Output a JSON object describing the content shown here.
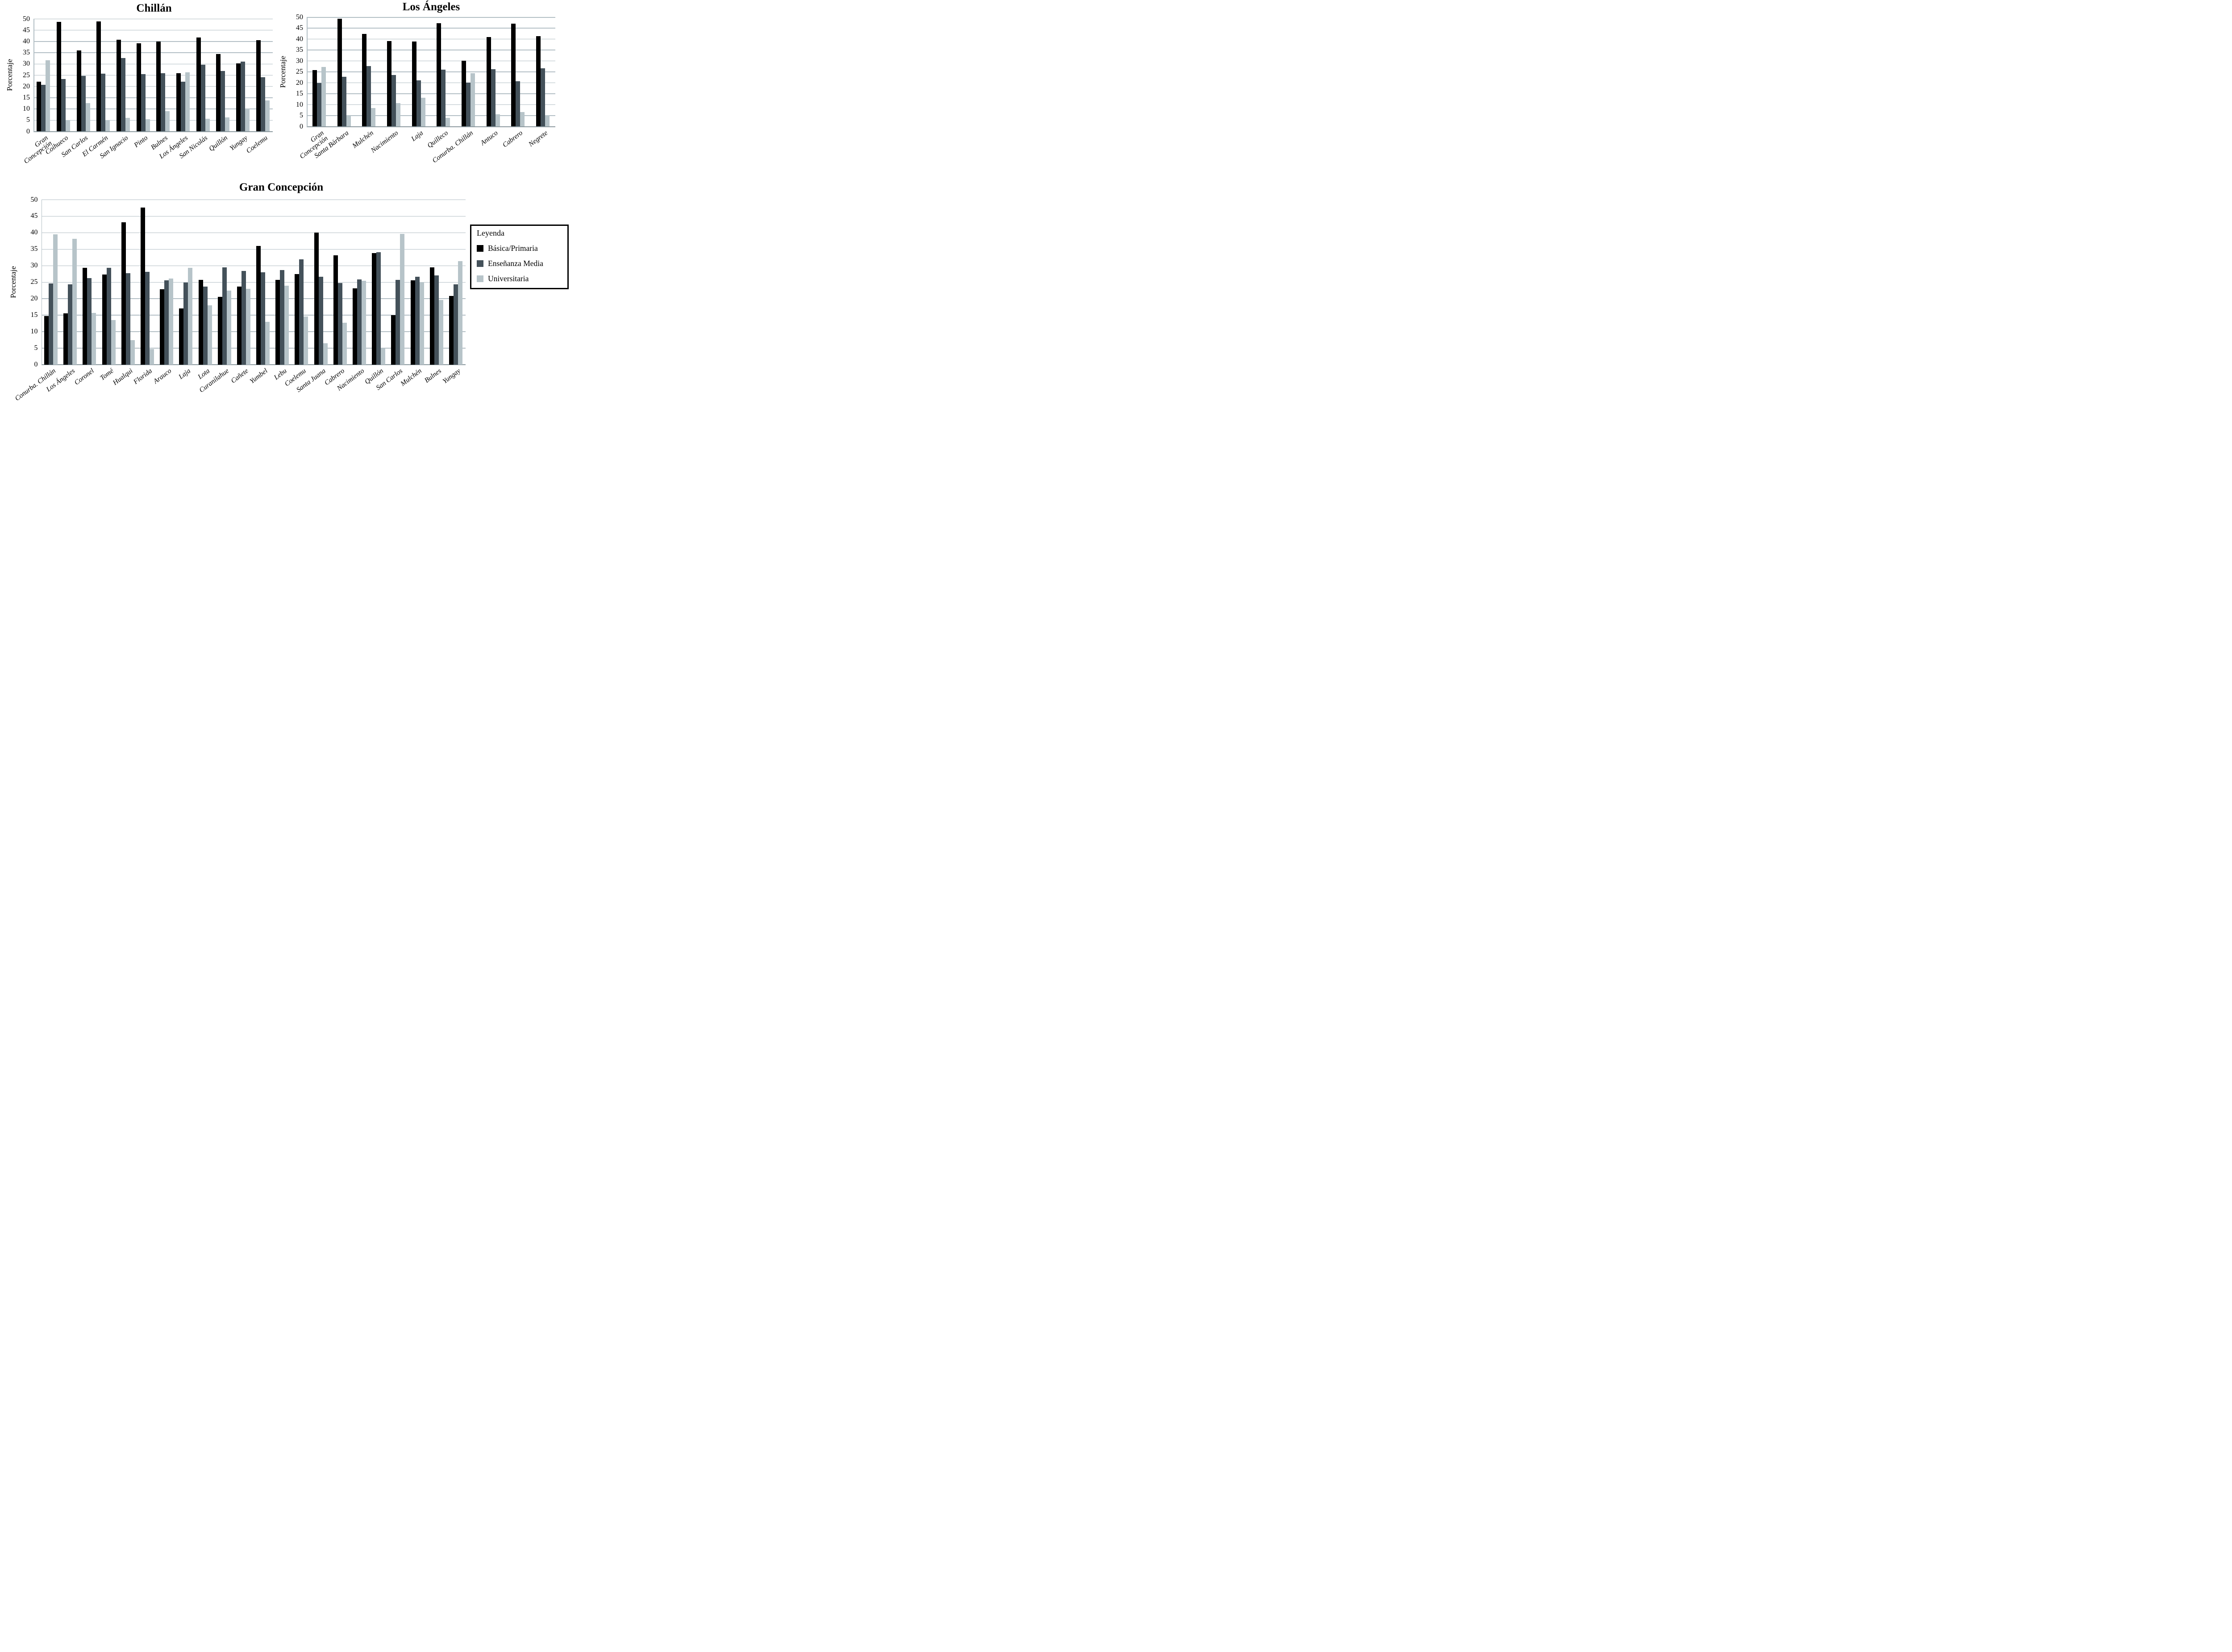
{
  "page": {
    "background": "#ffffff",
    "text_color": "#000000",
    "gridline_color": "#b3bfc5",
    "axis_line_color": "#8d9aa0"
  },
  "y_axis": {
    "label": "Porcentaje",
    "min": 0,
    "max": 50,
    "ticks": [
      0,
      5,
      10,
      15,
      20,
      25,
      30,
      35,
      40,
      45,
      50
    ]
  },
  "legend": {
    "title": "Leyenda",
    "items": [
      {
        "label": "Básica/Primaria",
        "color": "#000000"
      },
      {
        "label": "Enseñanza Media",
        "color": "#44515a"
      },
      {
        "label": "Universitaria",
        "color": "#b7c4c9"
      }
    ]
  },
  "chart_data": [
    {
      "type": "bar",
      "title": "Chillán",
      "xlabel": "",
      "ylabel": "Porcentaje",
      "ylim": [
        0,
        50
      ],
      "grid": true,
      "legend_position": "none",
      "categories": [
        "Gran\nConcepción",
        "Coihueco",
        "San Carlos",
        "El Carmén",
        "San Ignacio",
        "Pinto",
        "Bulnes",
        "Los Ángeles",
        "San Nicolás",
        "Quillón",
        "Yungay",
        "Coelemu"
      ],
      "series": [
        {
          "name": "Básica/Primaria",
          "values": [
            22.2,
            48.8,
            36.0,
            48.9,
            40.7,
            39.1,
            40.0,
            25.8,
            41.7,
            34.5,
            30.2,
            40.6
          ]
        },
        {
          "name": "Enseñanza Media",
          "values": [
            20.7,
            23.3,
            24.8,
            25.7,
            32.7,
            25.4,
            25.8,
            22.1,
            29.6,
            26.8,
            31.0,
            24.1
          ]
        },
        {
          "name": "Universitaria",
          "values": [
            31.6,
            5.0,
            12.6,
            5.1,
            6.1,
            5.4,
            9.0,
            26.3,
            5.7,
            6.2,
            10.2,
            13.8
          ]
        }
      ]
    },
    {
      "type": "bar",
      "title": "Los Ángeles",
      "xlabel": "",
      "ylabel": "Porcentaje",
      "ylim": [
        0,
        50
      ],
      "grid": true,
      "legend_position": "none",
      "categories": [
        "Gran\nConcepción",
        "Santa Bárbara",
        "Mulchén",
        "Nacimiento",
        "Laja",
        "Quilleco",
        "Conurba. Chillán",
        "Antuco",
        "Cabrero",
        "Negrete"
      ],
      "series": [
        {
          "name": "Básica/Primaria",
          "values": [
            25.9,
            49.3,
            42.3,
            39.2,
            38.9,
            47.3,
            30.2,
            41.0,
            47.0,
            41.4
          ]
        },
        {
          "name": "Enseñanza Media",
          "values": [
            20.0,
            22.8,
            27.6,
            23.6,
            21.1,
            26.1,
            20.1,
            26.2,
            20.8,
            26.7
          ]
        },
        {
          "name": "Universitaria",
          "values": [
            27.3,
            5.0,
            8.4,
            10.7,
            13.1,
            4.0,
            24.4,
            5.6,
            6.7,
            5.2
          ]
        }
      ]
    },
    {
      "type": "bar",
      "title": "Gran Concepción",
      "xlabel": "",
      "ylabel": "Porcentaje",
      "ylim": [
        0,
        50
      ],
      "grid": true,
      "legend_position": "right",
      "categories": [
        "Conurba. Chillán",
        "Los Ángeles",
        "Coronel",
        "Tomé",
        "Hualqui",
        "Florida",
        "Arauco",
        "Laja",
        "Lota",
        "Curanilahue",
        "Cañete",
        "Yumbel",
        "Lebu",
        "Coelemu",
        "Santa Juana",
        "Cabrero",
        "Nacimiento",
        "Quillón",
        "San Carlos",
        "Mulchén",
        "Bulnes",
        "Yungay"
      ],
      "series": [
        {
          "name": "Básica/Primaria",
          "values": [
            14.7,
            15.6,
            29.3,
            27.3,
            43.1,
            47.6,
            22.9,
            17.1,
            25.7,
            20.6,
            23.7,
            36.0,
            25.7,
            27.5,
            40.1,
            33.2,
            23.2,
            33.8,
            15.0,
            25.6,
            29.5,
            20.9
          ]
        },
        {
          "name": "Enseñanza Media",
          "values": [
            24.6,
            24.4,
            26.3,
            29.3,
            27.8,
            28.1,
            25.6,
            24.9,
            23.7,
            29.5,
            28.4,
            28.0,
            28.7,
            32.0,
            26.7,
            24.8,
            25.9,
            34.1,
            25.7,
            26.6,
            27.0,
            24.3
          ]
        },
        {
          "name": "Universitaria",
          "values": [
            39.5,
            38.2,
            15.7,
            13.5,
            7.5,
            4.8,
            26.1,
            29.4,
            18.0,
            22.5,
            23.0,
            13.0,
            24.0,
            14.6,
            6.5,
            12.7,
            25.4,
            4.9,
            39.6,
            25.0,
            19.6,
            31.4
          ]
        }
      ]
    }
  ]
}
